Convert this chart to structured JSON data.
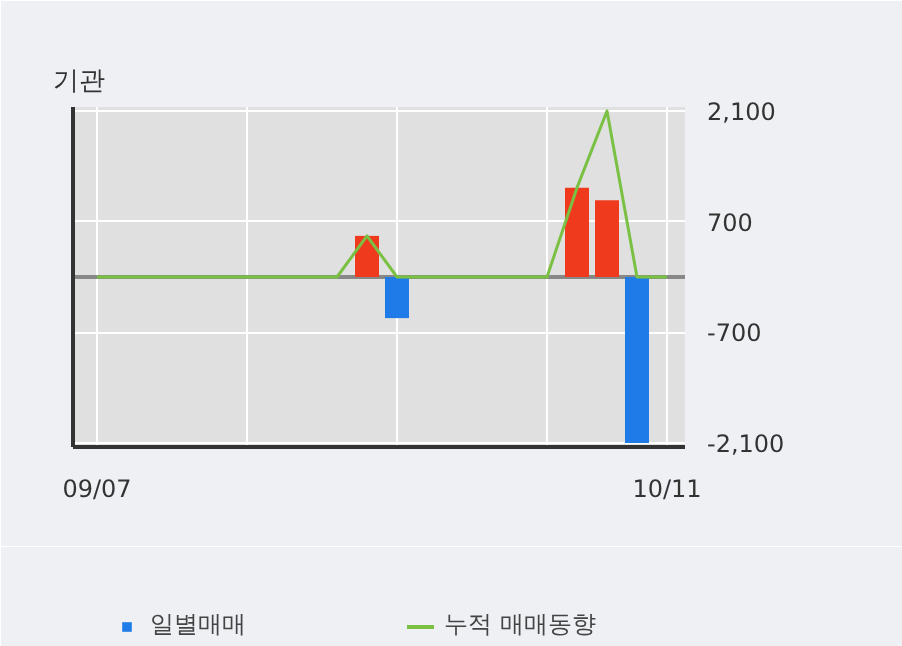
{
  "chart_data": {
    "type": "bar",
    "title": "기관",
    "categories": [
      "09/07",
      null,
      null,
      null,
      null,
      null,
      null,
      null,
      null,
      null,
      null,
      null,
      null,
      null,
      null,
      null,
      null,
      null,
      null,
      "10/11"
    ],
    "series": [
      {
        "name": "일별매매",
        "colors": [
          "#f03a1e",
          "#f03a1e",
          "#f03a1e",
          "#f03a1e",
          "#f03a1e",
          "#f03a1e",
          "#f03a1e",
          "#f03a1e",
          "#f03a1e",
          "#f03a1e",
          "#1f7be8",
          "#f03a1e",
          "#f03a1e",
          "#f03a1e",
          "#f03a1e",
          "#f03a1e",
          "#f03a1e",
          "#f03a1e",
          "#1f7be8",
          "#f03a1e"
        ],
        "values": [
          0,
          0,
          0,
          0,
          0,
          0,
          0,
          0,
          0,
          520,
          -520,
          0,
          0,
          0,
          0,
          0,
          1130,
          970,
          -2100,
          0
        ]
      },
      {
        "name": "누적 매매동향",
        "type": "line",
        "color": "#7ac143",
        "values": [
          0,
          0,
          0,
          0,
          0,
          0,
          0,
          0,
          0,
          520,
          0,
          0,
          0,
          0,
          0,
          0,
          1130,
          2100,
          0,
          0
        ]
      }
    ],
    "ylim": [
      -2150,
      2150
    ],
    "yticks": [
      {
        "value": -2100,
        "label": "-2,100"
      },
      {
        "value": -700,
        "label": "-700"
      },
      {
        "value": 700,
        "label": "700"
      },
      {
        "value": 2100,
        "label": "2,100"
      }
    ],
    "ref_lines": [
      {
        "axis": "y",
        "value": 0,
        "color": "#888888"
      }
    ],
    "grid": true,
    "legend": "bottom"
  }
}
